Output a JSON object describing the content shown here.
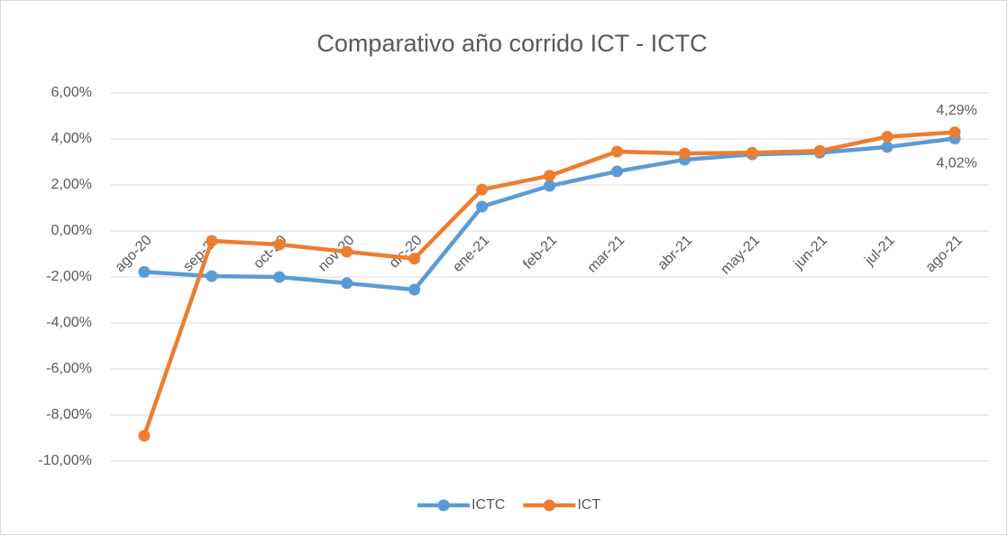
{
  "chart_data": {
    "type": "line",
    "title": "Comparativo año corrido ICT - ICTC",
    "categories": [
      "ago-20",
      "sep-20",
      "oct-20",
      "nov-20",
      "dic-20",
      "ene-21",
      "feb-21",
      "mar-21",
      "abr-21",
      "may-21",
      "jun-21",
      "jul-21",
      "ago-21"
    ],
    "series": [
      {
        "name": "ICTC",
        "color": "#5b9bd5",
        "values": [
          -1.78,
          -1.96,
          -2.0,
          -2.27,
          -2.55,
          1.06,
          1.96,
          2.59,
          3.1,
          3.33,
          3.4,
          3.65,
          4.02
        ],
        "value_labels": [
          null,
          null,
          null,
          null,
          null,
          null,
          null,
          null,
          null,
          null,
          null,
          null,
          "4,02%"
        ]
      },
      {
        "name": "ICT",
        "color": "#ed7d31",
        "values": [
          -8.9,
          -0.43,
          -0.59,
          -0.9,
          -1.2,
          1.8,
          2.4,
          3.45,
          3.37,
          3.4,
          3.48,
          4.1,
          4.29
        ],
        "value_labels": [
          null,
          null,
          null,
          null,
          null,
          null,
          null,
          null,
          null,
          null,
          null,
          null,
          "4,29%"
        ]
      }
    ],
    "ylim": [
      -10,
      6
    ],
    "yticks": [
      {
        "value": -10,
        "label": "-10,00%"
      },
      {
        "value": -8,
        "label": "-8,00%"
      },
      {
        "value": -6,
        "label": "-6,00%"
      },
      {
        "value": -4,
        "label": "-4,00%"
      },
      {
        "value": -2,
        "label": "-2,00%"
      },
      {
        "value": 0,
        "label": "0,00%"
      },
      {
        "value": 2,
        "label": "2,00%"
      },
      {
        "value": 4,
        "label": "4,00%"
      },
      {
        "value": 6,
        "label": "6,00%"
      }
    ],
    "grid": true,
    "legend": "bottom"
  }
}
